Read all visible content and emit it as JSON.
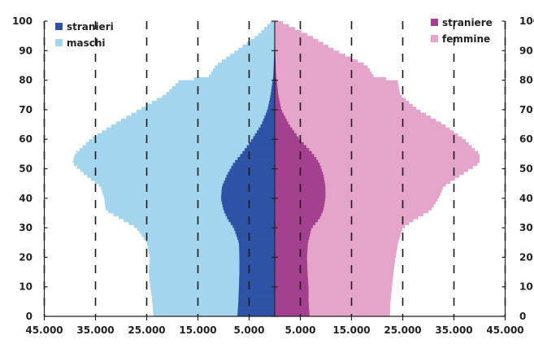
{
  "chart_data": {
    "type": "bar",
    "orientation": "horizontal",
    "subtype": "population-pyramid",
    "title": "",
    "xlabel": "",
    "ylabel": "",
    "xlim": [
      -45000,
      45000
    ],
    "ylim": [
      0,
      100
    ],
    "x_ticks": [
      -45000,
      -35000,
      -25000,
      -15000,
      -5000,
      5000,
      15000,
      25000,
      35000,
      45000
    ],
    "x_tick_labels": [
      "45.000",
      "35.000",
      "25.000",
      "15.000",
      "5.000",
      "5.000",
      "15.000",
      "25.000",
      "35.000",
      "45.000"
    ],
    "y_ticks": [
      0,
      10,
      20,
      30,
      40,
      50,
      60,
      70,
      80,
      90,
      100
    ],
    "y_tick_labels": [
      "0",
      "10",
      "20",
      "30",
      "40",
      "50",
      "60",
      "70",
      "80",
      "90",
      "100"
    ],
    "grid": "dashed vertical",
    "legend_left": {
      "placement": "top-left",
      "entries": [
        {
          "label": "stranieri",
          "color": "#2E53A6"
        },
        {
          "label": "maschi",
          "color": "#A3D6EE"
        }
      ]
    },
    "legend_right": {
      "placement": "top-right",
      "entries": [
        {
          "label": "straniere",
          "color": "#A4418F"
        },
        {
          "label": "femmine",
          "color": "#E5A4C9"
        }
      ]
    },
    "age_keypoints": [
      0,
      5,
      10,
      15,
      20,
      25,
      30,
      33,
      36,
      40,
      44,
      48,
      52,
      55,
      60,
      65,
      70,
      75,
      80,
      81,
      85,
      90,
      95,
      100
    ],
    "series": [
      {
        "name": "maschi",
        "side": "left",
        "color": "#A3D6EE",
        "values": [
          23700,
          23900,
          24300,
          24600,
          24400,
          25000,
          27000,
          30000,
          33000,
          33300,
          34000,
          37000,
          39500,
          39000,
          36000,
          31500,
          26500,
          21500,
          18500,
          13000,
          11500,
          7500,
          3500,
          600
        ]
      },
      {
        "name": "stranieri",
        "side": "left",
        "color": "#2E53A6",
        "values": [
          7300,
          7100,
          7000,
          6900,
          6900,
          7000,
          8000,
          9200,
          10000,
          10500,
          10300,
          9300,
          8000,
          6500,
          4400,
          2600,
          1400,
          800,
          400,
          300,
          200,
          100,
          50,
          0
        ]
      },
      {
        "name": "femmine",
        "side": "right",
        "color": "#E5A4C9",
        "values": [
          22500,
          22600,
          22900,
          23200,
          23600,
          24100,
          25000,
          27500,
          30500,
          32000,
          33000,
          36500,
          40000,
          40000,
          37000,
          33000,
          28000,
          24500,
          24000,
          19500,
          18000,
          12000,
          7000,
          1000
        ]
      },
      {
        "name": "straniere",
        "side": "right",
        "color": "#A4418F",
        "values": [
          6800,
          6600,
          6600,
          6400,
          6300,
          6500,
          7200,
          8700,
          9500,
          9900,
          9900,
          9500,
          8700,
          7500,
          4900,
          2800,
          1300,
          700,
          400,
          300,
          200,
          100,
          50,
          0
        ]
      }
    ]
  }
}
